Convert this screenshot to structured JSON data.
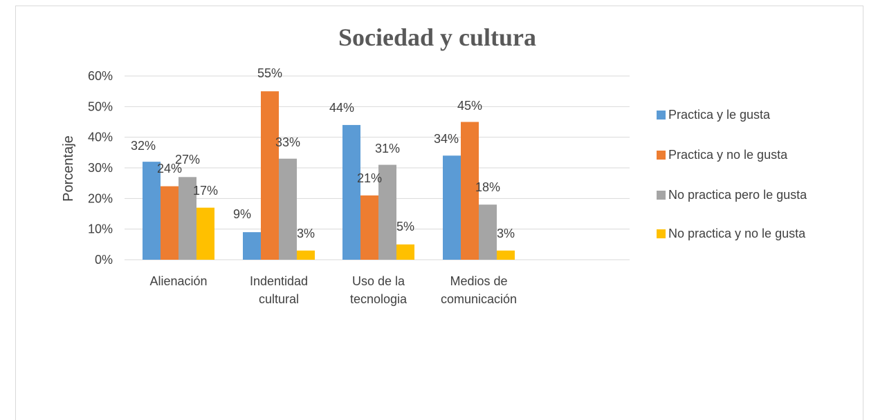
{
  "chart_data": {
    "type": "bar",
    "title": "Sociedad y cultura",
    "ylabel": "Porcentaje",
    "xlabel": "",
    "ylim": [
      0,
      60
    ],
    "yticks": [
      "0%",
      "10%",
      "20%",
      "30%",
      "40%",
      "50%",
      "60%"
    ],
    "categories": [
      [
        "Alienación"
      ],
      [
        "Indentidad",
        "cultural"
      ],
      [
        "Uso de la",
        "tecnologia"
      ],
      [
        "Medios de",
        "comunicación"
      ]
    ],
    "series": [
      {
        "name": "Practica y le gusta",
        "color": "#5b9bd5",
        "values": [
          32,
          9,
          44,
          34
        ],
        "labels": [
          "32%",
          "9%",
          "44%",
          "34%"
        ]
      },
      {
        "name": "Practica y no le gusta",
        "color": "#ed7d31",
        "values": [
          24,
          55,
          21,
          45
        ],
        "labels": [
          "24%",
          "55%",
          "21%",
          "45%"
        ]
      },
      {
        "name": "No practica pero le gusta",
        "color": "#a5a5a5",
        "values": [
          27,
          33,
          31,
          18
        ],
        "labels": [
          "27%",
          "33%",
          "31%",
          "18%"
        ]
      },
      {
        "name": "No practica y no le gusta",
        "color": "#ffc000",
        "values": [
          17,
          3,
          5,
          3
        ],
        "labels": [
          "17%",
          "3%",
          "5%",
          "3%"
        ]
      }
    ],
    "grid": true,
    "legend": "right"
  }
}
